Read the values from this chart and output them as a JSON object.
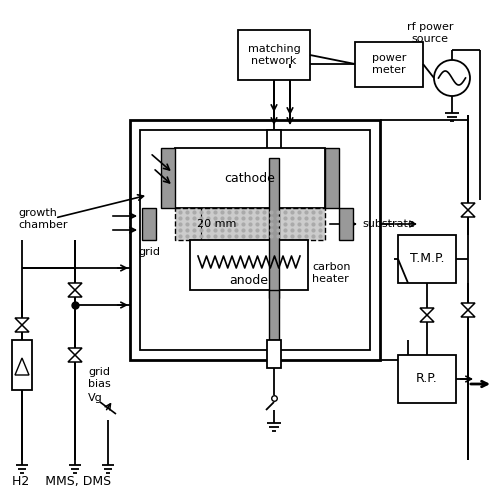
{
  "bg_color": "#ffffff",
  "lc": "#000000",
  "gray": "#999999",
  "dgray": "#555555",
  "labels": {
    "rf_power": "rf power\nsource",
    "matching_network": "matching\nnetwork",
    "power_meter": "power\nmeter",
    "growth_chamber": "growth\nchamber",
    "cathode": "cathode",
    "anode": "anode",
    "substrate": "substrate",
    "grid": "grid",
    "carbon_heater": "carbon\nheater",
    "20mm": "20 mm",
    "grid_bias": "grid\nbias",
    "Vg": "Vg",
    "TMP": "T.M.P.",
    "RP": "R.P.",
    "bottom": "H2    MMS, DMS"
  }
}
